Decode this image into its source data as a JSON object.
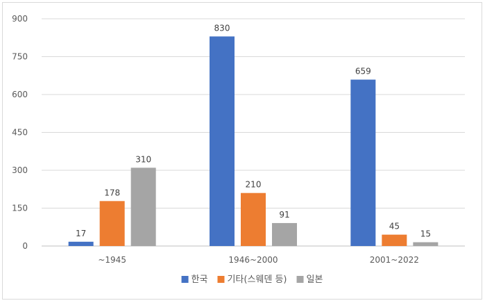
{
  "chart_data": {
    "type": "bar",
    "title": "",
    "xlabel": "",
    "ylabel": "",
    "categories": [
      "~1945",
      "1946~2000",
      "2001~2022"
    ],
    "series": [
      {
        "name": "한국",
        "color": "#4472c4",
        "values": [
          17,
          830,
          659
        ]
      },
      {
        "name": "기타(스웨덴 등)",
        "color": "#ed7d31",
        "values": [
          178,
          210,
          45
        ]
      },
      {
        "name": "일본",
        "color": "#a5a5a5",
        "values": [
          310,
          91,
          15
        ]
      }
    ],
    "ylim": [
      0,
      900
    ],
    "yticks": [
      0,
      150,
      300,
      450,
      600,
      750,
      900
    ],
    "grid": true,
    "legend_position": "bottom"
  }
}
